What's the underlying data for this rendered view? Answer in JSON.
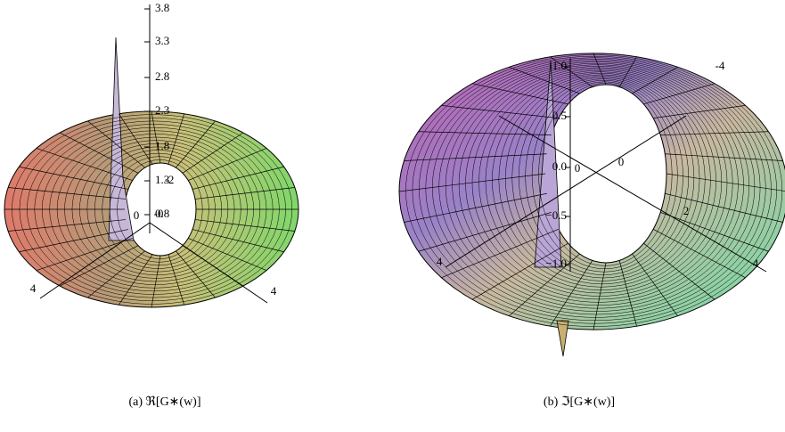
{
  "panels": [
    {
      "caption": "(a) ℜ[G∗(w)]",
      "z_tick_labels": [
        "3.8",
        "3.3",
        "2.8",
        "2.3",
        "1.8",
        "1.3",
        "0.8"
      ],
      "axis_labels": [
        "0",
        "-2",
        "-0",
        "4",
        "4"
      ]
    },
    {
      "caption": "(b) ℑ[G∗(w)]",
      "z_tick_labels": [
        "1.0",
        "0.5",
        "0.0",
        "−0.5",
        "−1.0"
      ],
      "axis_labels": [
        "-4",
        "0",
        "0",
        "2",
        "4",
        "4"
      ]
    }
  ]
}
